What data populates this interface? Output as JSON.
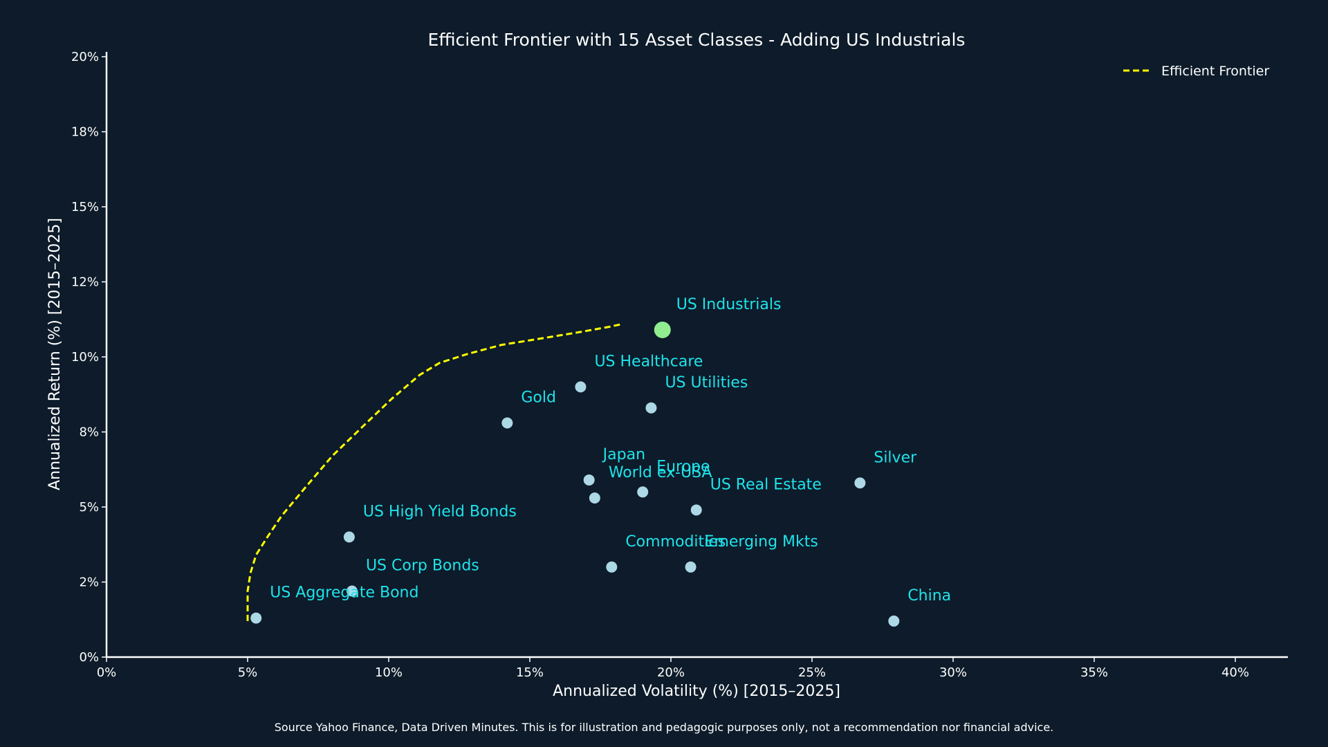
{
  "chart_data": {
    "type": "scatter",
    "title": "Efficient Frontier with 15 Asset Classes - Adding US Industrials",
    "xlabel": "Annualized Volatility (%) [2015–2025]",
    "ylabel": "Annualized Return (%) [2015–2025]",
    "xlim": [
      0,
      42
    ],
    "ylim": [
      0,
      20.3
    ],
    "x_ticks": [
      0,
      5,
      10,
      15,
      20,
      25,
      30,
      35,
      40
    ],
    "x_tick_labels": [
      "0%",
      "5%",
      "10%",
      "15%",
      "20%",
      "25%",
      "30%",
      "35%",
      "40%"
    ],
    "y_ticks": [
      0,
      2.5,
      5,
      7.5,
      10,
      12.5,
      15,
      17.5,
      20
    ],
    "y_tick_labels": [
      "0%",
      "2%",
      "5%",
      "8%",
      "10%",
      "12%",
      "15%",
      "18%",
      "20%"
    ],
    "grid": false,
    "legend": {
      "position": "top-right",
      "entries": [
        {
          "name": "Efficient Frontier",
          "style": "dashed-line",
          "color": "#ffff00"
        }
      ]
    },
    "points": [
      {
        "label": "US Industrials",
        "x": 19.7,
        "y": 10.9,
        "color": "#90ee90",
        "highlight": true
      },
      {
        "label": "US Healthcare",
        "x": 16.8,
        "y": 9.0,
        "color": "#add8e6"
      },
      {
        "label": "US Utilities",
        "x": 19.3,
        "y": 8.3,
        "color": "#add8e6"
      },
      {
        "label": "Gold",
        "x": 14.2,
        "y": 7.8,
        "color": "#add8e6"
      },
      {
        "label": "Japan",
        "x": 17.1,
        "y": 5.9,
        "color": "#add8e6"
      },
      {
        "label": "World ex-USA",
        "x": 17.3,
        "y": 5.3,
        "color": "#add8e6"
      },
      {
        "label": "Europe",
        "x": 19.0,
        "y": 5.5,
        "color": "#add8e6"
      },
      {
        "label": "US Real Estate",
        "x": 20.9,
        "y": 4.9,
        "color": "#add8e6"
      },
      {
        "label": "Silver",
        "x": 26.7,
        "y": 5.8,
        "color": "#add8e6"
      },
      {
        "label": "US High Yield Bonds",
        "x": 8.6,
        "y": 4.0,
        "color": "#add8e6"
      },
      {
        "label": "Commodities",
        "x": 17.9,
        "y": 3.0,
        "color": "#add8e6"
      },
      {
        "label": "Emerging Mkts",
        "x": 20.7,
        "y": 3.0,
        "color": "#add8e6"
      },
      {
        "label": "US Corp Bonds",
        "x": 8.7,
        "y": 2.2,
        "color": "#add8e6"
      },
      {
        "label": "US Aggregate Bond",
        "x": 5.3,
        "y": 1.3,
        "color": "#add8e6"
      },
      {
        "label": "China",
        "x": 27.9,
        "y": 1.2,
        "color": "#add8e6"
      }
    ],
    "series": [
      {
        "name": "Efficient Frontier",
        "type": "line",
        "style": "dashed",
        "color": "#ffff00",
        "x": [
          5.0,
          5.0,
          5.1,
          5.3,
          5.7,
          6.2,
          7.0,
          8.0,
          9.1,
          10.1,
          11.1,
          11.8,
          12.8,
          14.0,
          15.3,
          16.6,
          17.8,
          18.3
        ],
        "y": [
          1.2,
          2.2,
          2.8,
          3.4,
          4.0,
          4.7,
          5.6,
          6.7,
          7.7,
          8.6,
          9.4,
          9.8,
          10.1,
          10.4,
          10.6,
          10.8,
          11.0,
          11.1
        ]
      }
    ]
  },
  "source_note": "Source Yahoo Finance, Data Driven Minutes. This is for illustration and pedagogic purposes only, not a recommendation nor financial advice."
}
